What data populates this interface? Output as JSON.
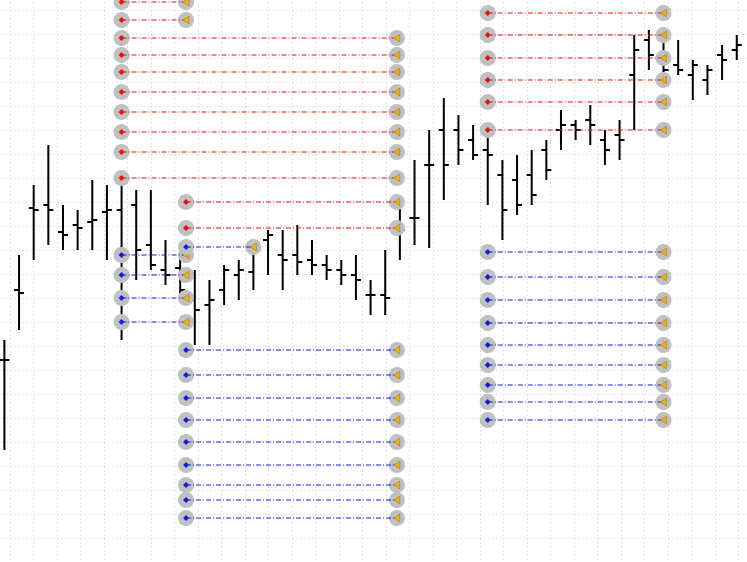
{
  "chart_data": {
    "type": "ohlc",
    "x": [
      0,
      1,
      2,
      3,
      4,
      5,
      6,
      7,
      8,
      9,
      10,
      11,
      12,
      13,
      14,
      15,
      16,
      17,
      18,
      19,
      20,
      21,
      22,
      23,
      24,
      25,
      26,
      27,
      28,
      29,
      30,
      31,
      32,
      33,
      34,
      35,
      36,
      37,
      38,
      39,
      40,
      41,
      42,
      43,
      44,
      45,
      46,
      47,
      48,
      49,
      50
    ],
    "xlim": [
      -0.3,
      50.7
    ],
    "open": [
      202,
      272,
      354,
      357,
      330,
      337,
      340,
      350,
      352,
      357,
      317,
      292,
      294,
      262,
      257,
      272,
      287,
      290,
      322,
      307,
      307,
      302,
      297,
      292,
      287,
      267,
      267,
      332,
      344,
      397,
      432,
      432,
      422,
      412,
      387,
      382,
      387,
      412,
      432,
      437,
      442,
      422,
      427,
      487,
      522,
      502,
      497,
      487,
      482,
      507,
      512
    ],
    "high": [
      222,
      307,
      377,
      417,
      357,
      352,
      382,
      377,
      387,
      372,
      372,
      322,
      317,
      292,
      282,
      297,
      302,
      322,
      332,
      332,
      337,
      322,
      307,
      302,
      307,
      282,
      312,
      367,
      402,
      432,
      464,
      447,
      437,
      432,
      402,
      407,
      412,
      422,
      452,
      442,
      457,
      432,
      442,
      527,
      532,
      522,
      522,
      502,
      497,
      517,
      527
    ],
    "low": [
      112,
      232,
      302,
      317,
      312,
      312,
      312,
      302,
      222,
      282,
      292,
      277,
      267,
      217,
      217,
      257,
      262,
      272,
      287,
      272,
      287,
      287,
      282,
      277,
      262,
      247,
      247,
      302,
      317,
      314,
      362,
      397,
      402,
      357,
      322,
      347,
      357,
      382,
      412,
      422,
      417,
      397,
      402,
      432,
      492,
      482,
      487,
      462,
      467,
      482,
      502
    ],
    "close": [
      202,
      269,
      352,
      352,
      327,
      334,
      342,
      352,
      307,
      312,
      297,
      287,
      272,
      252,
      262,
      292,
      292,
      317,
      327,
      302,
      300,
      297,
      292,
      287,
      282,
      267,
      264,
      332,
      344,
      397,
      397,
      412,
      407,
      407,
      352,
      357,
      367,
      392,
      437,
      432,
      437,
      412,
      422,
      512,
      507,
      492,
      492,
      497,
      492,
      502,
      517
    ],
    "ylim": [
      0,
      562
    ],
    "grid": true,
    "bar_color": "#000000",
    "trades": [
      {
        "color": "#e01010",
        "open": 8,
        "close": 12.4,
        "prices": [
          560,
          542
        ]
      },
      {
        "color": "#e01010",
        "open": 8,
        "close": 26.8,
        "prices": [
          524,
          507,
          490,
          470,
          450,
          430,
          410,
          384
        ]
      },
      {
        "color": "#e01010",
        "open": 12.4,
        "close": 26.8,
        "prices": [
          360,
          334
        ]
      },
      {
        "color": "#1020d0",
        "open": 8,
        "close": 12.4,
        "prices": [
          307,
          287,
          264,
          240
        ]
      },
      {
        "color": "#1020d0",
        "open": 12.4,
        "close": 17,
        "prices": [
          315
        ]
      },
      {
        "color": "#1020d0",
        "open": 12.4,
        "close": 26.8,
        "prices": [
          212,
          187,
          164,
          142,
          120,
          97,
          77,
          62,
          44
        ]
      },
      {
        "color": "#e01010",
        "open": 33,
        "close": 45,
        "prices": [
          549,
          527,
          504,
          482,
          460,
          432
        ]
      },
      {
        "color": "#1020d0",
        "open": 33,
        "close": 45,
        "prices": [
          310,
          285,
          262,
          239,
          217,
          197,
          177,
          160,
          142
        ]
      }
    ]
  }
}
